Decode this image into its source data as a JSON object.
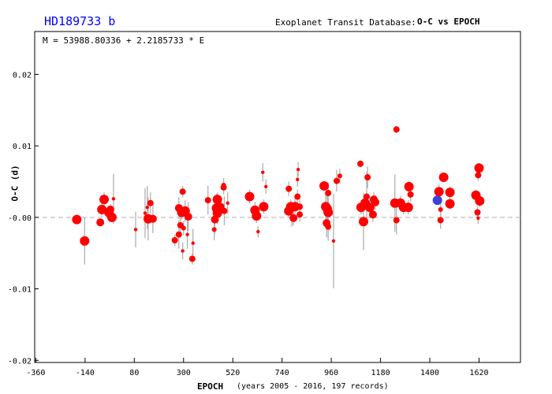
{
  "header": {
    "planet": "HD189733 b",
    "database": "Exoplanet Transit Database:",
    "plot_kind": "O-C vs EPOCH",
    "ephemeris": "M = 53988.80336 + 2.2185733 * E"
  },
  "colors": {
    "points": "#ff0000",
    "highlight": "#4040dd",
    "error_bars": "#b0b0b0",
    "zero_line": "#b0b0b0",
    "title": "#0000ff"
  },
  "chart_data": {
    "type": "scatter",
    "xlabel": "EPOCH",
    "xlabel_note": "(years 2005 - 2016, 197 records)",
    "ylabel": "O-C (d)",
    "xlim": [
      -365,
      1805
    ],
    "ylim": [
      -0.0203,
      0.026
    ],
    "xticks": [
      -360,
      -140,
      80,
      300,
      520,
      740,
      960,
      1180,
      1400,
      1620
    ],
    "xtick_labels": [
      "-360",
      "-140",
      "80",
      "300",
      "520",
      "740",
      "960",
      "1180",
      "1400",
      "1620"
    ],
    "yticks": [
      -0.02,
      -0.01,
      0,
      0.01,
      0.02
    ],
    "ytick_labels": [
      "-0.02",
      "-0.01",
      "-0.00",
      "0.01",
      "0.02"
    ],
    "zero_line": "dashed",
    "grid": false,
    "point_fields": [
      "epoch",
      "oc",
      "error",
      "quality"
    ],
    "points": [
      [
        -177,
        -0.0003,
        0.0004,
        5
      ],
      [
        -142,
        -0.0033,
        0.0033,
        5
      ],
      [
        -55,
        0.0025,
        0.001,
        5
      ],
      [
        -65,
        0.0011,
        0.001,
        5
      ],
      [
        -72,
        -0.0007,
        0.0005,
        4
      ],
      [
        -34,
        0.0007,
        0.0006,
        5
      ],
      [
        -20,
        0.0,
        0.0005,
        5
      ],
      [
        -27,
        0.0011,
        0.0008,
        4
      ],
      [
        -13,
        0.0026,
        0.0035,
        1
      ],
      [
        86,
        -0.0017,
        0.0025,
        1
      ],
      [
        128,
        0.0006,
        0.0035,
        1
      ],
      [
        142,
        -0.0002,
        0.003,
        5
      ],
      [
        152,
        0.002,
        0.0015,
        3
      ],
      [
        138,
        0.0014,
        0.003,
        1
      ],
      [
        163,
        -0.0002,
        0.002,
        4
      ],
      [
        296,
        0.0036,
        0.0008,
        3
      ],
      [
        279,
        0.0013,
        0.0015,
        4
      ],
      [
        292,
        0.0007,
        0.001,
        5
      ],
      [
        307,
        0.0009,
        0.0015,
        5
      ],
      [
        321,
        0.0001,
        0.002,
        4
      ],
      [
        286,
        -0.0011,
        0.0015,
        3
      ],
      [
        279,
        -0.0024,
        0.002,
        3
      ],
      [
        261,
        -0.0032,
        0.0008,
        3
      ],
      [
        296,
        -0.0047,
        0.0012,
        1
      ],
      [
        317,
        -0.0024,
        0.002,
        1
      ],
      [
        342,
        -0.0036,
        0.002,
        1
      ],
      [
        339,
        -0.0058,
        0.0008,
        3
      ],
      [
        300,
        -0.0015,
        0.001,
        2
      ],
      [
        409,
        0.0024,
        0.002,
        3
      ],
      [
        451,
        0.0025,
        0.001,
        5
      ],
      [
        479,
        0.0042,
        0.001,
        3
      ],
      [
        479,
        0.0045,
        0.001,
        2
      ],
      [
        447,
        0.0013,
        0.002,
        5
      ],
      [
        465,
        0.0015,
        0.0012,
        4
      ],
      [
        451,
        0.0006,
        0.0015,
        5
      ],
      [
        440,
        -0.0003,
        0.002,
        4
      ],
      [
        437,
        -0.0017,
        0.0015,
        2
      ],
      [
        482,
        0.0009,
        0.002,
        3
      ],
      [
        497,
        0.002,
        0.0015,
        1
      ],
      [
        595,
        0.0029,
        0.001,
        5
      ],
      [
        654,
        0.0063,
        0.0013,
        1
      ],
      [
        668,
        0.0043,
        0.001,
        1
      ],
      [
        619,
        0.001,
        0.0012,
        5
      ],
      [
        626,
        0.0002,
        0.001,
        5
      ],
      [
        658,
        0.0015,
        0.001,
        5
      ],
      [
        633,
        -0.002,
        0.0008,
        1
      ],
      [
        770,
        0.004,
        0.001,
        3
      ],
      [
        812,
        0.0067,
        0.001,
        1
      ],
      [
        809,
        0.0053,
        0.001,
        1
      ],
      [
        779,
        0.0015,
        0.001,
        5
      ],
      [
        770,
        0.0009,
        0.001,
        5
      ],
      [
        798,
        0.0015,
        0.0012,
        5
      ],
      [
        809,
        0.0029,
        0.001,
        3
      ],
      [
        791,
        -0.0001,
        0.001,
        4
      ],
      [
        819,
        0.0004,
        0.001,
        3
      ],
      [
        819,
        0.0015,
        0.001,
        3
      ],
      [
        784,
        -0.0003,
        0.001,
        1
      ],
      [
        928,
        0.0044,
        0.0005,
        5
      ],
      [
        946,
        0.0034,
        0.0015,
        3
      ],
      [
        935,
        0.0015,
        0.002,
        5
      ],
      [
        946,
        0.0007,
        0.002,
        5
      ],
      [
        939,
        -0.0008,
        0.002,
        4
      ],
      [
        946,
        -0.0013,
        0.002,
        3
      ],
      [
        970,
        -0.0033,
        0.0066,
        1
      ],
      [
        998,
        0.0058,
        0.001,
        2
      ],
      [
        984,
        0.0051,
        0.0015,
        3
      ],
      [
        942,
        0.0012,
        0.002,
        5
      ],
      [
        1090,
        0.0075,
        0.0005,
        3
      ],
      [
        1122,
        0.0056,
        0.0015,
        3
      ],
      [
        1118,
        0.0029,
        0.0035,
        3
      ],
      [
        1093,
        0.0014,
        0.001,
        5
      ],
      [
        1111,
        0.002,
        0.001,
        5
      ],
      [
        1132,
        0.0014,
        0.0015,
        5
      ],
      [
        1150,
        0.0025,
        0.001,
        4
      ],
      [
        1104,
        -0.0006,
        0.004,
        5
      ],
      [
        1146,
        0.0004,
        0.001,
        4
      ],
      [
        1157,
        0.0021,
        0.001,
        4
      ],
      [
        1251,
        0.0123,
        0.0005,
        3
      ],
      [
        1244,
        0.002,
        0.004,
        5
      ],
      [
        1269,
        0.002,
        0.001,
        5
      ],
      [
        1283,
        0.0014,
        0.001,
        5
      ],
      [
        1307,
        0.0043,
        0.0008,
        5
      ],
      [
        1314,
        0.0032,
        0.001,
        3
      ],
      [
        1304,
        0.0014,
        0.001,
        5
      ],
      [
        1251,
        -0.0004,
        0.002,
        3
      ],
      [
        1462,
        0.0056,
        0.0005,
        5
      ],
      [
        1441,
        0.0036,
        0.001,
        5
      ],
      [
        1490,
        0.0035,
        0.0008,
        5
      ],
      [
        1490,
        0.0019,
        0.0008,
        5
      ],
      [
        1448,
        0.0011,
        0.001,
        2
      ],
      [
        1448,
        -0.0004,
        0.0012,
        3
      ],
      [
        1620,
        0.0069,
        0.0005,
        5
      ],
      [
        1616,
        0.0059,
        0.0008,
        3
      ],
      [
        1606,
        0.0031,
        0.0008,
        5
      ],
      [
        1623,
        0.0023,
        0.0008,
        5
      ],
      [
        1613,
        0.0007,
        0.0008,
        3
      ],
      [
        1616,
        -0.0001,
        0.0008,
        1
      ]
    ],
    "highlighted_points": [
      [
        1434,
        0.0024,
        0.0005,
        5
      ]
    ]
  }
}
